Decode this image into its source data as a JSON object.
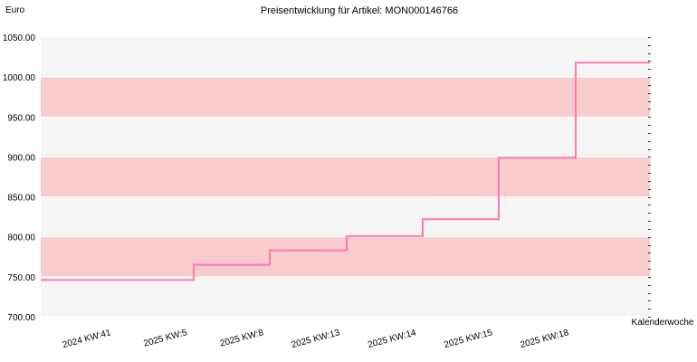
{
  "chart_data": {
    "type": "line",
    "step": true,
    "title": "Preisentwicklung für Artikel: MON000146766",
    "ylabel": "Euro",
    "xlabel": "Kalenderwoche",
    "ylim": [
      700,
      1050
    ],
    "y_ticks": [
      700,
      750,
      800,
      850,
      900,
      950,
      1000,
      1050
    ],
    "y_tick_labels": [
      "700.00",
      "750.00",
      "800.00",
      "850.00",
      "900.00",
      "950.00",
      "1000.00",
      "1050.00"
    ],
    "categories": [
      "2024 KW:41",
      "2025 KW:5",
      "2025 KW:8",
      "2025 KW:13",
      "2025 KW:14",
      "2025 KW:15",
      "2025 KW:18"
    ],
    "series": [
      {
        "values": [
          746,
          765,
          783,
          801,
          822,
          899,
          1018
        ]
      }
    ],
    "grid": "alternating horizontal bands",
    "colors": {
      "line": "#ff77b4",
      "band_a": "#f8cccc",
      "band_b": "#f5f5f5",
      "grid": "#ffffff"
    }
  }
}
